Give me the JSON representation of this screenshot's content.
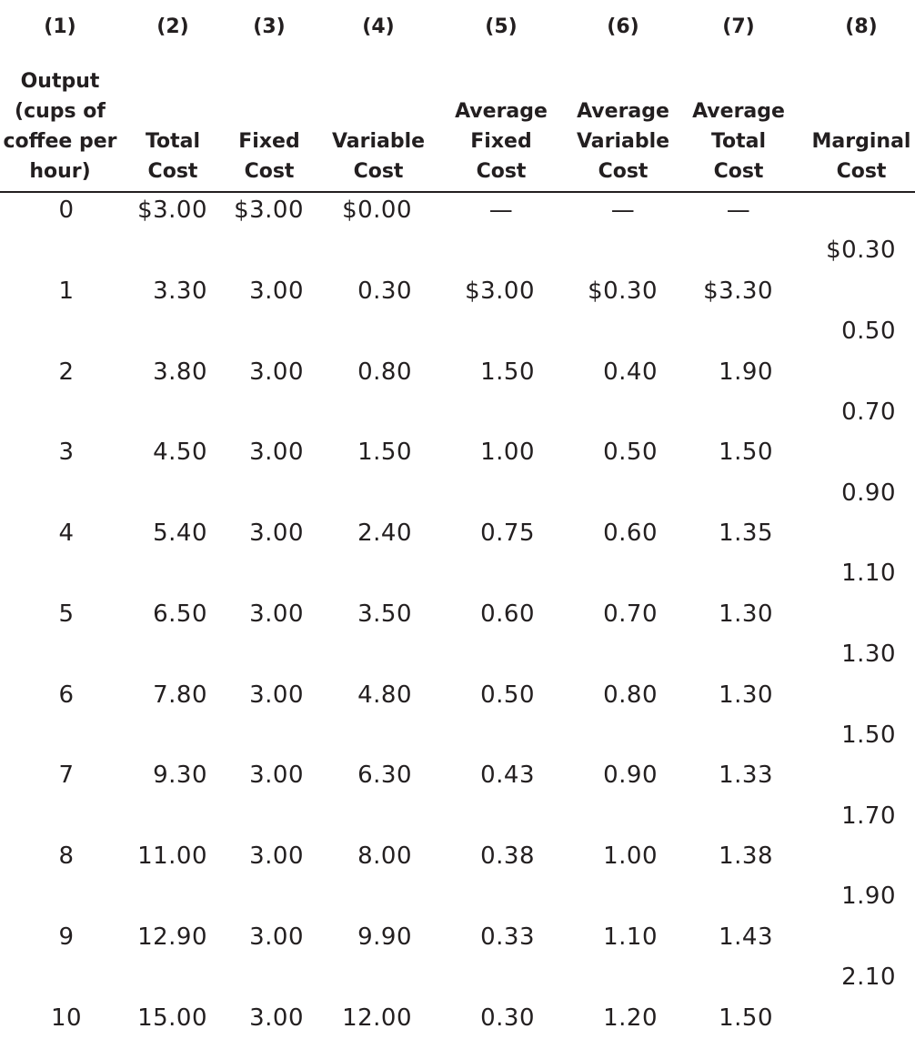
{
  "table": {
    "column_numbers": [
      "(1)",
      "(2)",
      "(3)",
      "(4)",
      "(5)",
      "(6)",
      "(7)",
      "(8)"
    ],
    "column_titles": [
      [
        "Output",
        "(cups of",
        "coffee per",
        "hour)"
      ],
      [
        "Total",
        "Cost"
      ],
      [
        "Fixed",
        "Cost"
      ],
      [
        "Variable",
        "Cost"
      ],
      [
        "Average",
        "Fixed",
        "Cost"
      ],
      [
        "Average",
        "Variable",
        "Cost"
      ],
      [
        "Average",
        "Total",
        "Cost"
      ],
      [
        "Marginal",
        "Cost"
      ]
    ],
    "rows": [
      {
        "output": "0",
        "total": "$3.00",
        "fixed": "$3.00",
        "variable": "$0.00",
        "afc": "—",
        "avc": "—",
        "atc": "—"
      },
      {
        "output": "1",
        "total": "3.30",
        "fixed": "3.00",
        "variable": "0.30",
        "afc": "$3.00",
        "avc": "$0.30",
        "atc": "$3.30"
      },
      {
        "output": "2",
        "total": "3.80",
        "fixed": "3.00",
        "variable": "0.80",
        "afc": "1.50",
        "avc": "0.40",
        "atc": "1.90"
      },
      {
        "output": "3",
        "total": "4.50",
        "fixed": "3.00",
        "variable": "1.50",
        "afc": "1.00",
        "avc": "0.50",
        "atc": "1.50"
      },
      {
        "output": "4",
        "total": "5.40",
        "fixed": "3.00",
        "variable": "2.40",
        "afc": "0.75",
        "avc": "0.60",
        "atc": "1.35"
      },
      {
        "output": "5",
        "total": "6.50",
        "fixed": "3.00",
        "variable": "3.50",
        "afc": "0.60",
        "avc": "0.70",
        "atc": "1.30"
      },
      {
        "output": "6",
        "total": "7.80",
        "fixed": "3.00",
        "variable": "4.80",
        "afc": "0.50",
        "avc": "0.80",
        "atc": "1.30"
      },
      {
        "output": "7",
        "total": "9.30",
        "fixed": "3.00",
        "variable": "6.30",
        "afc": "0.43",
        "avc": "0.90",
        "atc": "1.33"
      },
      {
        "output": "8",
        "total": "11.00",
        "fixed": "3.00",
        "variable": "8.00",
        "afc": "0.38",
        "avc": "1.00",
        "atc": "1.38"
      },
      {
        "output": "9",
        "total": "12.90",
        "fixed": "3.00",
        "variable": "9.90",
        "afc": "0.33",
        "avc": "1.10",
        "atc": "1.43"
      },
      {
        "output": "10",
        "total": "15.00",
        "fixed": "3.00",
        "variable": "12.00",
        "afc": "0.30",
        "avc": "1.20",
        "atc": "1.50"
      }
    ],
    "marginal_costs": [
      "$0.30",
      "0.50",
      "0.70",
      "0.90",
      "1.10",
      "1.30",
      "1.50",
      "1.70",
      "1.90",
      "2.10"
    ]
  }
}
